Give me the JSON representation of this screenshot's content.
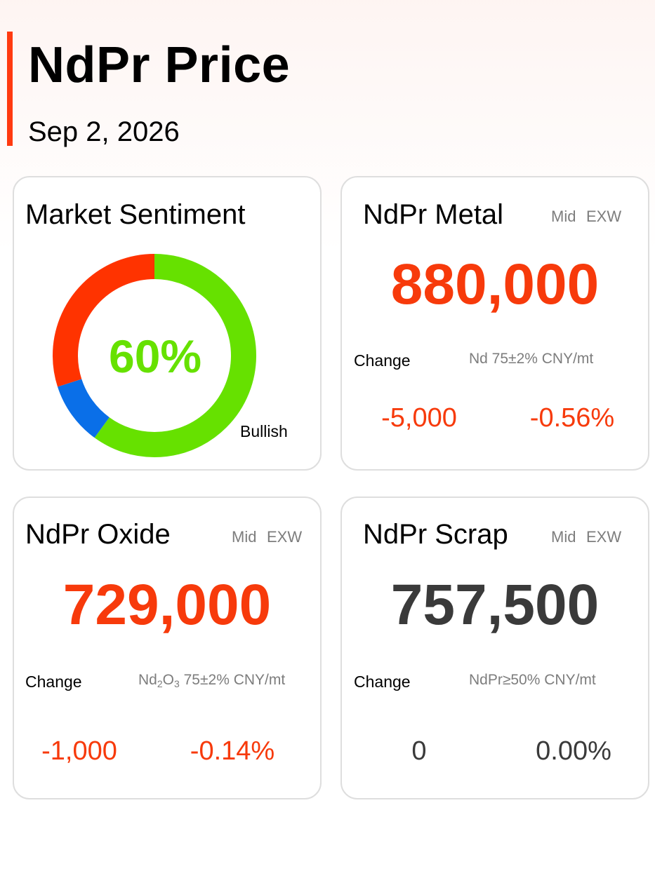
{
  "header": {
    "title": "NdPr Price",
    "date": "Sep 2, 2026",
    "accent_color": "#ff3a10"
  },
  "sentiment": {
    "title": "Market Sentiment",
    "value_label": "60%",
    "caption": "Bullish",
    "segments": [
      {
        "name": "bullish",
        "percent": 60,
        "color": "#66e100"
      },
      {
        "name": "neutral",
        "percent": 10,
        "color": "#0a6fe8"
      },
      {
        "name": "bearish",
        "percent": 30,
        "color": "#ff3300"
      }
    ]
  },
  "cards": {
    "metal": {
      "title": "NdPr Metal",
      "mid": "Mid",
      "exw": "EXW",
      "price": "880,000",
      "change_label": "Change",
      "spec": "Nd 75±2% CNY/mt",
      "change_abs": "-5,000",
      "change_pct": "-0.56%"
    },
    "oxide": {
      "title": "NdPr Oxide",
      "mid": "Mid",
      "exw": "EXW",
      "price": "729,000",
      "change_label": "Change",
      "spec_prefix": "Nd",
      "spec_sub1": "2",
      "spec_mid": "O",
      "spec_sub2": "3",
      "spec_suffix": " 75±2% CNY/mt",
      "change_abs": "-1,000",
      "change_pct": "-0.14%"
    },
    "scrap": {
      "title": "NdPr Scrap",
      "mid": "Mid",
      "exw": "EXW",
      "price": "757,500",
      "change_label": "Change",
      "spec": "NdPr≥50% CNY/mt",
      "change_abs": "0",
      "change_pct": "0.00%"
    }
  },
  "colors": {
    "down": "#f73a0b",
    "flat": "#3a3a3a",
    "up": "#66e100"
  }
}
